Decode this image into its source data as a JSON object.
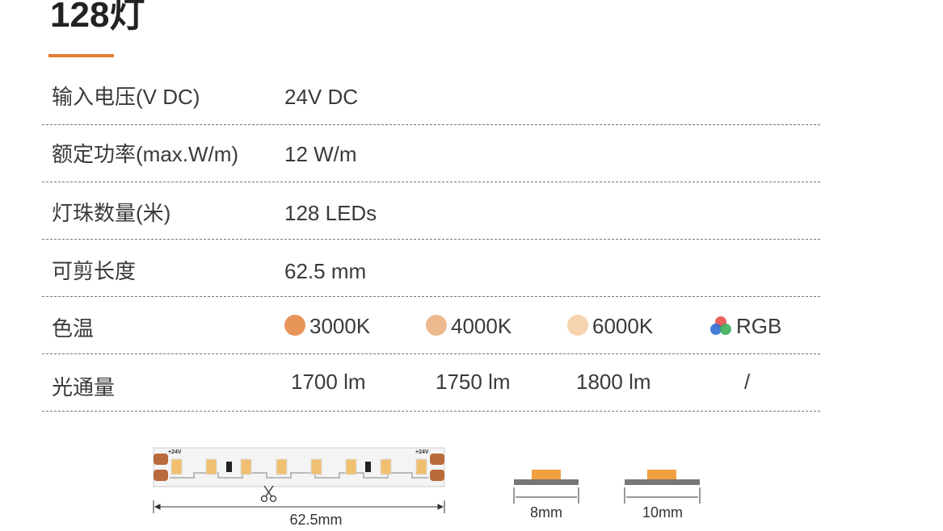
{
  "title": "128灯",
  "specs": [
    {
      "label": "输入电压(V DC)",
      "value": "24V DC"
    },
    {
      "label": "额定功率(max.W/m)",
      "value": "12 W/m"
    },
    {
      "label": "灯珠数量(米)",
      "value": "128 LEDs"
    },
    {
      "label": "可剪长度",
      "value": "62.5 mm"
    }
  ],
  "color_temperature": {
    "label": "色温",
    "options": [
      "3000K",
      "4000K",
      "6000K",
      "RGB"
    ]
  },
  "luminous_flux": {
    "label": "光通量",
    "values": [
      "1700 lm",
      "1750 lm",
      "1800 lm",
      "/"
    ]
  },
  "diagram": {
    "voltage_labels": [
      "+24V",
      "+24V"
    ],
    "cut_length": "62.5mm",
    "widths": [
      "8mm",
      "10mm"
    ]
  }
}
